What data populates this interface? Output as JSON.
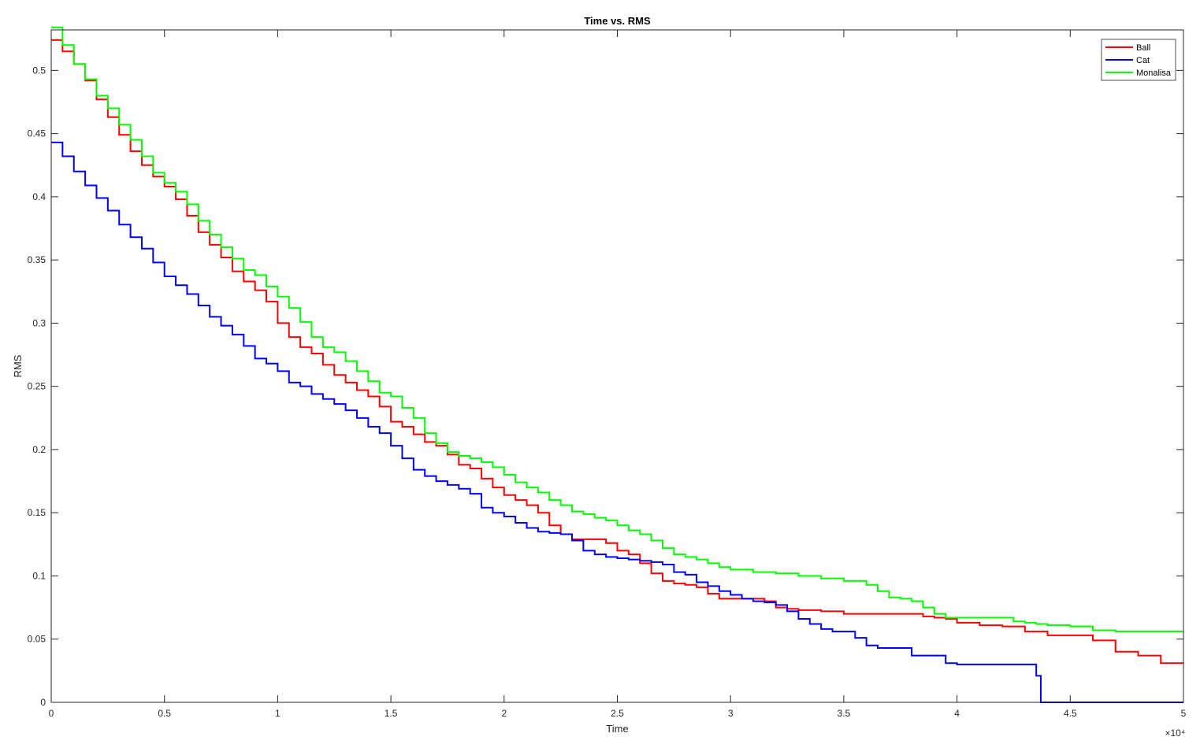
{
  "chart_data": {
    "type": "line",
    "title": "Time vs. RMS",
    "xlabel": "Time",
    "ylabel": "RMS",
    "xlim": [
      0,
      50000
    ],
    "ylim": [
      0,
      0.532
    ],
    "x_exponent_label": "×10⁴",
    "x_tick_values": [
      0,
      5000,
      10000,
      15000,
      20000,
      25000,
      30000,
      35000,
      40000,
      45000,
      50000
    ],
    "x_tick_labels": [
      "0",
      "0.5",
      "1",
      "1.5",
      "2",
      "2.5",
      "3",
      "3.5",
      "4",
      "4.5",
      "5"
    ],
    "y_tick_values": [
      0,
      0.05,
      0.1,
      0.15,
      0.2,
      0.25,
      0.3,
      0.35,
      0.4,
      0.45,
      0.5
    ],
    "y_tick_labels": [
      "0",
      "0.05",
      "0.1",
      "0.15",
      "0.2",
      "0.25",
      "0.3",
      "0.35",
      "0.4",
      "0.45",
      "0.5"
    ],
    "grid": false,
    "legend_position": "top-right",
    "series": [
      {
        "name": "Ball",
        "color": "#ff0000",
        "points": [
          [
            0,
            0.524
          ],
          [
            500,
            0.515
          ],
          [
            1000,
            0.505
          ],
          [
            1500,
            0.492
          ],
          [
            2000,
            0.477
          ],
          [
            2500,
            0.463
          ],
          [
            3000,
            0.449
          ],
          [
            3500,
            0.436
          ],
          [
            4000,
            0.425
          ],
          [
            4500,
            0.416
          ],
          [
            5000,
            0.408
          ],
          [
            5500,
            0.398
          ],
          [
            6000,
            0.385
          ],
          [
            6500,
            0.372
          ],
          [
            7000,
            0.362
          ],
          [
            7500,
            0.352
          ],
          [
            8000,
            0.341
          ],
          [
            8500,
            0.333
          ],
          [
            9000,
            0.326
          ],
          [
            9500,
            0.317
          ],
          [
            10000,
            0.3
          ],
          [
            10500,
            0.289
          ],
          [
            11000,
            0.281
          ],
          [
            11500,
            0.276
          ],
          [
            12000,
            0.267
          ],
          [
            12500,
            0.259
          ],
          [
            13000,
            0.253
          ],
          [
            13500,
            0.247
          ],
          [
            14000,
            0.242
          ],
          [
            14500,
            0.234
          ],
          [
            15000,
            0.222
          ],
          [
            15500,
            0.218
          ],
          [
            16000,
            0.212
          ],
          [
            16500,
            0.206
          ],
          [
            17000,
            0.203
          ],
          [
            17500,
            0.196
          ],
          [
            18000,
            0.188
          ],
          [
            18500,
            0.185
          ],
          [
            19000,
            0.177
          ],
          [
            19500,
            0.17
          ],
          [
            20000,
            0.164
          ],
          [
            20500,
            0.16
          ],
          [
            21000,
            0.156
          ],
          [
            21500,
            0.15
          ],
          [
            22000,
            0.14
          ],
          [
            22500,
            0.133
          ],
          [
            23000,
            0.129
          ],
          [
            24000,
            0.129
          ],
          [
            24500,
            0.126
          ],
          [
            25000,
            0.12
          ],
          [
            25500,
            0.117
          ],
          [
            26000,
            0.11
          ],
          [
            26500,
            0.102
          ],
          [
            27000,
            0.096
          ],
          [
            27500,
            0.094
          ],
          [
            28000,
            0.093
          ],
          [
            28500,
            0.091
          ],
          [
            29000,
            0.086
          ],
          [
            29500,
            0.082
          ],
          [
            31000,
            0.082
          ],
          [
            31500,
            0.08
          ],
          [
            32000,
            0.075
          ],
          [
            32500,
            0.074
          ],
          [
            33000,
            0.073
          ],
          [
            34000,
            0.072
          ],
          [
            35000,
            0.07
          ],
          [
            36000,
            0.07
          ],
          [
            37500,
            0.07
          ],
          [
            38000,
            0.07
          ],
          [
            38500,
            0.068
          ],
          [
            39000,
            0.067
          ],
          [
            39500,
            0.066
          ],
          [
            40000,
            0.063
          ],
          [
            41000,
            0.061
          ],
          [
            42000,
            0.06
          ],
          [
            43000,
            0.056
          ],
          [
            44000,
            0.053
          ],
          [
            45000,
            0.053
          ],
          [
            46000,
            0.049
          ],
          [
            47000,
            0.04
          ],
          [
            48000,
            0.037
          ],
          [
            48500,
            0.037
          ],
          [
            49000,
            0.031
          ],
          [
            50000,
            0.031
          ]
        ]
      },
      {
        "name": "Cat",
        "color": "#0000ff",
        "points": [
          [
            0,
            0.443
          ],
          [
            500,
            0.432
          ],
          [
            1000,
            0.42
          ],
          [
            1500,
            0.409
          ],
          [
            2000,
            0.399
          ],
          [
            2500,
            0.389
          ],
          [
            3000,
            0.378
          ],
          [
            3500,
            0.368
          ],
          [
            4000,
            0.359
          ],
          [
            4500,
            0.348
          ],
          [
            5000,
            0.337
          ],
          [
            5500,
            0.33
          ],
          [
            6000,
            0.323
          ],
          [
            6500,
            0.314
          ],
          [
            7000,
            0.305
          ],
          [
            7500,
            0.298
          ],
          [
            8000,
            0.291
          ],
          [
            8500,
            0.282
          ],
          [
            9000,
            0.272
          ],
          [
            9500,
            0.268
          ],
          [
            10000,
            0.262
          ],
          [
            10500,
            0.253
          ],
          [
            11000,
            0.25
          ],
          [
            11500,
            0.244
          ],
          [
            12000,
            0.24
          ],
          [
            12500,
            0.236
          ],
          [
            13000,
            0.231
          ],
          [
            13500,
            0.225
          ],
          [
            14000,
            0.218
          ],
          [
            14500,
            0.213
          ],
          [
            15000,
            0.203
          ],
          [
            15500,
            0.193
          ],
          [
            16000,
            0.184
          ],
          [
            16500,
            0.179
          ],
          [
            17000,
            0.175
          ],
          [
            17500,
            0.172
          ],
          [
            18000,
            0.169
          ],
          [
            18500,
            0.165
          ],
          [
            19000,
            0.154
          ],
          [
            19500,
            0.15
          ],
          [
            20000,
            0.147
          ],
          [
            20500,
            0.142
          ],
          [
            21000,
            0.138
          ],
          [
            21500,
            0.135
          ],
          [
            22000,
            0.134
          ],
          [
            22500,
            0.133
          ],
          [
            23000,
            0.128
          ],
          [
            23500,
            0.12
          ],
          [
            24000,
            0.117
          ],
          [
            24500,
            0.115
          ],
          [
            25000,
            0.114
          ],
          [
            25500,
            0.113
          ],
          [
            26000,
            0.112
          ],
          [
            26500,
            0.111
          ],
          [
            27000,
            0.109
          ],
          [
            27500,
            0.103
          ],
          [
            28000,
            0.101
          ],
          [
            28500,
            0.095
          ],
          [
            29000,
            0.092
          ],
          [
            29500,
            0.088
          ],
          [
            30000,
            0.085
          ],
          [
            30500,
            0.082
          ],
          [
            31000,
            0.08
          ],
          [
            31500,
            0.079
          ],
          [
            32000,
            0.077
          ],
          [
            32500,
            0.072
          ],
          [
            33000,
            0.066
          ],
          [
            33500,
            0.062
          ],
          [
            34000,
            0.058
          ],
          [
            34500,
            0.056
          ],
          [
            35000,
            0.056
          ],
          [
            35500,
            0.051
          ],
          [
            36000,
            0.045
          ],
          [
            36500,
            0.043
          ],
          [
            37500,
            0.043
          ],
          [
            38000,
            0.037
          ],
          [
            39000,
            0.037
          ],
          [
            39500,
            0.031
          ],
          [
            40000,
            0.03
          ],
          [
            42000,
            0.03
          ],
          [
            43000,
            0.03
          ],
          [
            43500,
            0.021
          ],
          [
            43700,
            0.021
          ],
          [
            43700,
            0
          ],
          [
            50000,
            0
          ]
        ]
      },
      {
        "name": "Monalisa",
        "color": "#00ff00",
        "points": [
          [
            0,
            0.534
          ],
          [
            500,
            0.52
          ],
          [
            1000,
            0.505
          ],
          [
            1500,
            0.493
          ],
          [
            2000,
            0.48
          ],
          [
            2500,
            0.47
          ],
          [
            3000,
            0.457
          ],
          [
            3500,
            0.445
          ],
          [
            4000,
            0.432
          ],
          [
            4500,
            0.419
          ],
          [
            5000,
            0.411
          ],
          [
            5500,
            0.404
          ],
          [
            6000,
            0.394
          ],
          [
            6500,
            0.381
          ],
          [
            7000,
            0.37
          ],
          [
            7500,
            0.36
          ],
          [
            8000,
            0.351
          ],
          [
            8500,
            0.342
          ],
          [
            9000,
            0.338
          ],
          [
            9500,
            0.329
          ],
          [
            10000,
            0.321
          ],
          [
            10500,
            0.312
          ],
          [
            11000,
            0.301
          ],
          [
            11500,
            0.289
          ],
          [
            12000,
            0.281
          ],
          [
            12500,
            0.277
          ],
          [
            13000,
            0.27
          ],
          [
            13500,
            0.262
          ],
          [
            14000,
            0.254
          ],
          [
            14500,
            0.245
          ],
          [
            15000,
            0.242
          ],
          [
            15500,
            0.233
          ],
          [
            16000,
            0.225
          ],
          [
            16500,
            0.213
          ],
          [
            17000,
            0.205
          ],
          [
            17500,
            0.198
          ],
          [
            18000,
            0.195
          ],
          [
            18500,
            0.193
          ],
          [
            19000,
            0.19
          ],
          [
            19500,
            0.186
          ],
          [
            20000,
            0.18
          ],
          [
            20500,
            0.174
          ],
          [
            21000,
            0.17
          ],
          [
            21500,
            0.166
          ],
          [
            22000,
            0.16
          ],
          [
            22500,
            0.156
          ],
          [
            23000,
            0.151
          ],
          [
            23500,
            0.149
          ],
          [
            24000,
            0.146
          ],
          [
            24500,
            0.144
          ],
          [
            25000,
            0.14
          ],
          [
            25500,
            0.136
          ],
          [
            26000,
            0.133
          ],
          [
            26500,
            0.128
          ],
          [
            27000,
            0.122
          ],
          [
            27500,
            0.117
          ],
          [
            28000,
            0.115
          ],
          [
            28500,
            0.113
          ],
          [
            29000,
            0.11
          ],
          [
            29500,
            0.107
          ],
          [
            30000,
            0.105
          ],
          [
            31000,
            0.103
          ],
          [
            32000,
            0.102
          ],
          [
            33000,
            0.1
          ],
          [
            34000,
            0.098
          ],
          [
            35000,
            0.096
          ],
          [
            36000,
            0.093
          ],
          [
            36500,
            0.088
          ],
          [
            37000,
            0.083
          ],
          [
            37500,
            0.082
          ],
          [
            38000,
            0.08
          ],
          [
            38500,
            0.075
          ],
          [
            39000,
            0.07
          ],
          [
            39500,
            0.067
          ],
          [
            40000,
            0.067
          ],
          [
            41000,
            0.067
          ],
          [
            42000,
            0.067
          ],
          [
            42500,
            0.064
          ],
          [
            43000,
            0.063
          ],
          [
            43500,
            0.062
          ],
          [
            44000,
            0.061
          ],
          [
            45000,
            0.06
          ],
          [
            46000,
            0.057
          ],
          [
            47000,
            0.056
          ],
          [
            48000,
            0.056
          ],
          [
            49000,
            0.056
          ],
          [
            50000,
            0.056
          ]
        ]
      }
    ]
  }
}
